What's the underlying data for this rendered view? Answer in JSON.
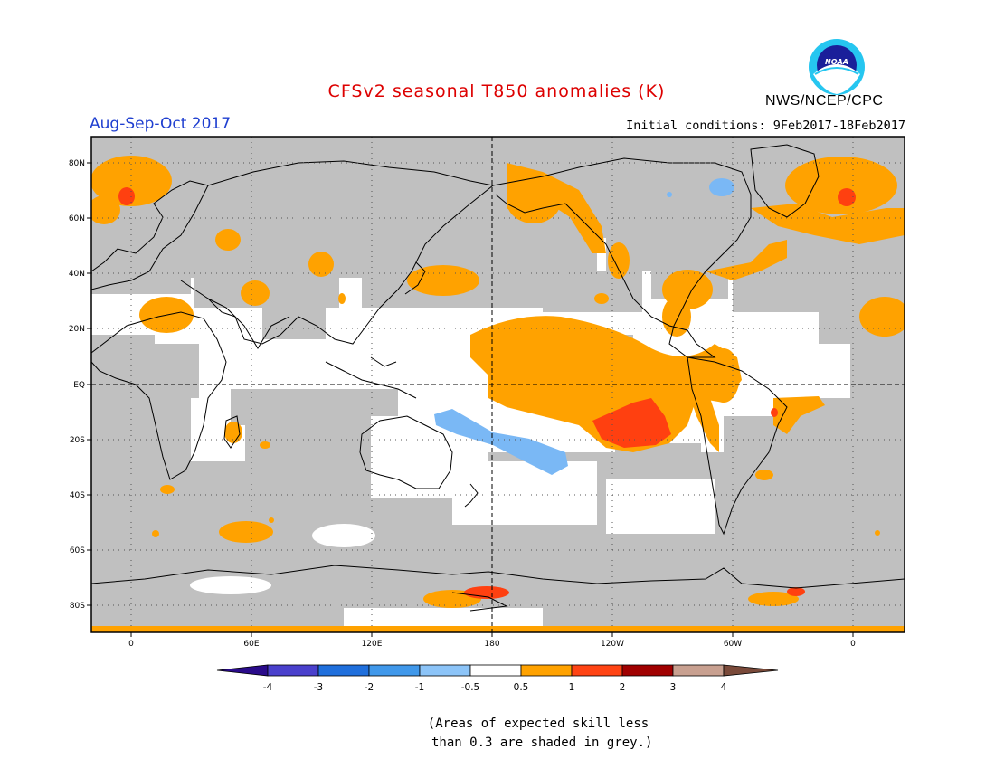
{
  "header": {
    "title": "CFSv2 seasonal T850 anomalies (K)",
    "period": "Aug-Sep-Oct 2017",
    "initial_conditions": "Initial conditions: 9Feb2017-18Feb2017",
    "agency": "NWS/NCEP/CPC",
    "logo_text": "NOAA"
  },
  "colors": {
    "title": "#dd0000",
    "period": "#1f3fd0",
    "skill_grey": "#c0c0c0",
    "warm_0_5_1": "#ffa200",
    "warm_1_2": "#ff4010",
    "cool_m1_m0_5": "#7ab8f5",
    "land_outline": "#000000"
  },
  "map": {
    "lat_labels": [
      "80N",
      "60N",
      "40N",
      "20N",
      "EQ",
      "20S",
      "40S",
      "60S",
      "80S"
    ],
    "lon_labels": [
      "0",
      "60E",
      "120E",
      "180",
      "120W",
      "60W",
      "0"
    ]
  },
  "legend": {
    "colors": [
      "#2a0b8a",
      "#4a40cc",
      "#1f6fdc",
      "#4098ea",
      "#8cc4f8",
      "#ffffff",
      "#ffa200",
      "#ff4414",
      "#a00000",
      "#c8a090",
      "#7a4a3a"
    ],
    "labels": [
      "-4",
      "-3",
      "-2",
      "-1",
      "-0.5",
      "0.5",
      "1",
      "2",
      "3",
      "4"
    ]
  },
  "footnote": {
    "line1": "(Areas of expected skill less",
    "line2": " than 0.3 are shaded in grey.)"
  }
}
